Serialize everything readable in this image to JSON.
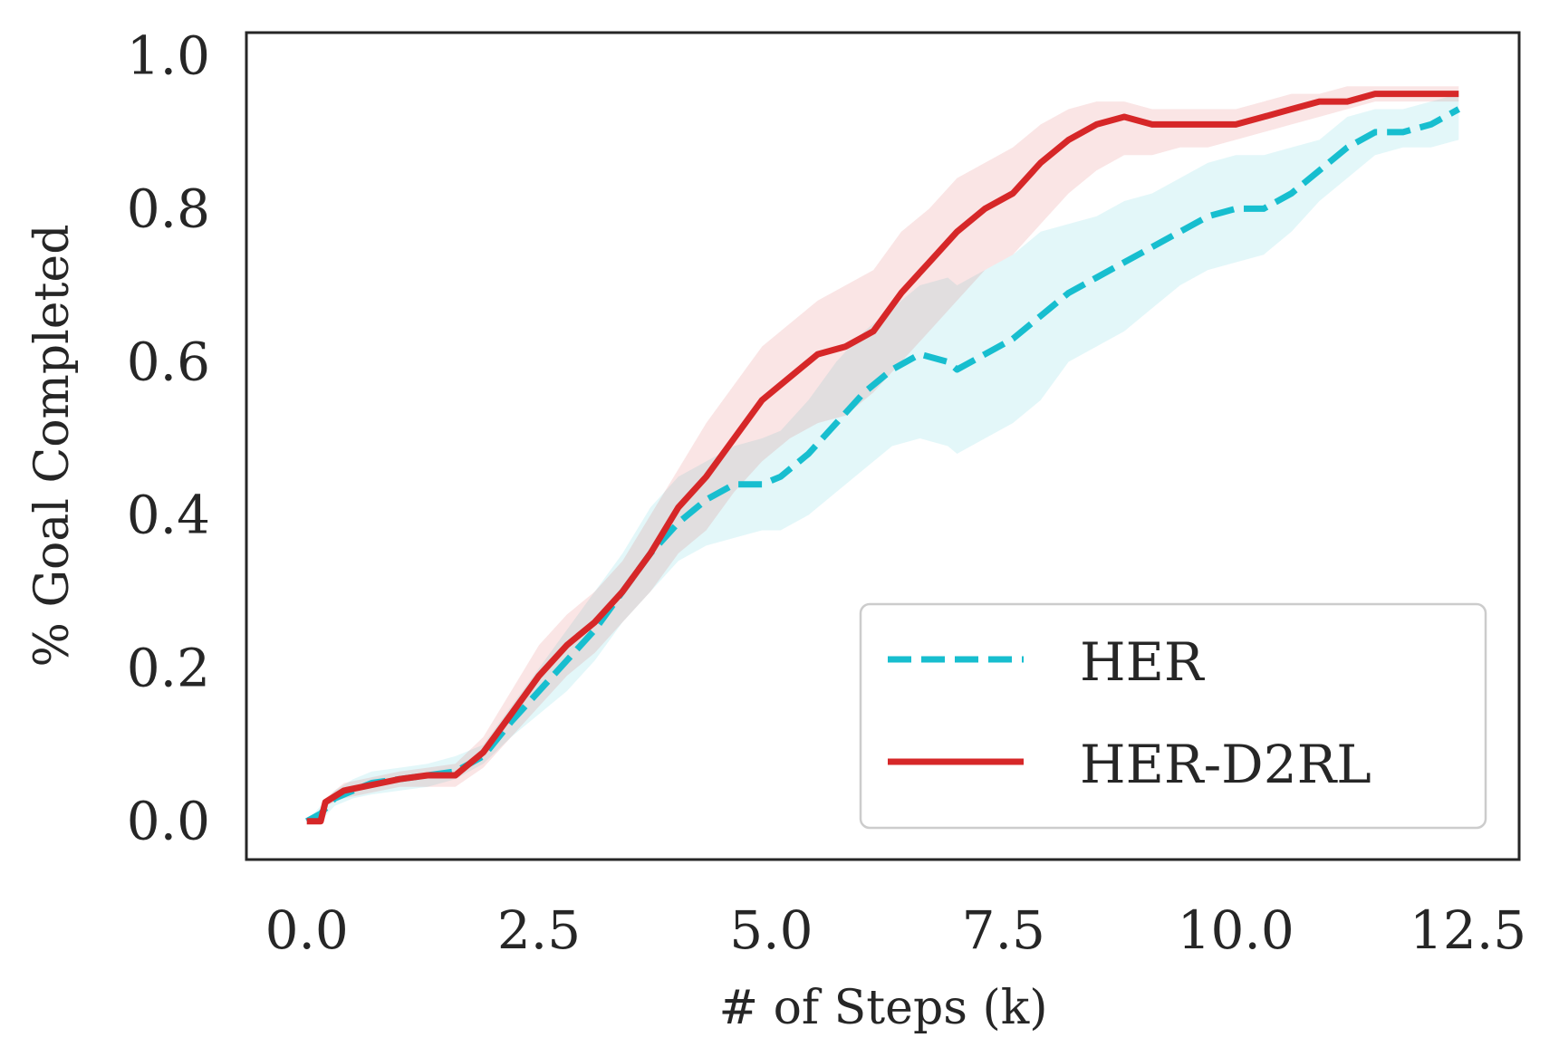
{
  "chart_data": {
    "type": "line",
    "title": "",
    "xlabel": "# of Steps (k)",
    "ylabel": "% Goal Completed",
    "xlim": [
      -0.65,
      13.05
    ],
    "ylim": [
      -0.05,
      1.03
    ],
    "xticks": [
      0.0,
      2.5,
      5.0,
      7.5,
      10.0,
      12.5
    ],
    "xtick_labels": [
      "0.0",
      "2.5",
      "5.0",
      "7.5",
      "10.0",
      "12.5"
    ],
    "yticks": [
      0.0,
      0.2,
      0.4,
      0.6,
      0.8,
      1.0
    ],
    "ytick_labels": [
      "0.0",
      "0.2",
      "0.4",
      "0.6",
      "0.8",
      "1.0"
    ],
    "grid": false,
    "legend_position": "lower-right",
    "series": [
      {
        "name": "HER",
        "color": "#17becf",
        "style": "dashed",
        "x": [
          0.0,
          0.15,
          0.3,
          0.5,
          0.7,
          1.0,
          1.3,
          1.6,
          1.9,
          2.2,
          2.5,
          2.8,
          3.1,
          3.4,
          3.7,
          4.0,
          4.3,
          4.6,
          4.9,
          5.1,
          5.4,
          5.7,
          6.0,
          6.3,
          6.6,
          6.9,
          7.0,
          7.3,
          7.6,
          7.9,
          8.2,
          8.5,
          8.8,
          9.1,
          9.4,
          9.7,
          10.0,
          10.3,
          10.6,
          10.9,
          11.2,
          11.5,
          11.8,
          12.1,
          12.4
        ],
        "y": [
          0.0,
          0.01,
          0.03,
          0.04,
          0.05,
          0.055,
          0.06,
          0.065,
          0.085,
          0.13,
          0.17,
          0.21,
          0.25,
          0.3,
          0.35,
          0.39,
          0.42,
          0.44,
          0.44,
          0.45,
          0.48,
          0.52,
          0.56,
          0.59,
          0.61,
          0.6,
          0.59,
          0.61,
          0.63,
          0.66,
          0.69,
          0.71,
          0.73,
          0.75,
          0.77,
          0.79,
          0.8,
          0.8,
          0.82,
          0.85,
          0.88,
          0.9,
          0.9,
          0.91,
          0.93
        ],
        "lower": [
          0.0,
          0.0,
          0.02,
          0.03,
          0.035,
          0.04,
          0.045,
          0.055,
          0.075,
          0.11,
          0.14,
          0.17,
          0.21,
          0.26,
          0.3,
          0.34,
          0.36,
          0.37,
          0.38,
          0.38,
          0.4,
          0.43,
          0.46,
          0.49,
          0.5,
          0.49,
          0.48,
          0.5,
          0.52,
          0.55,
          0.6,
          0.62,
          0.64,
          0.67,
          0.7,
          0.72,
          0.73,
          0.74,
          0.77,
          0.81,
          0.84,
          0.87,
          0.88,
          0.88,
          0.89
        ],
        "upper": [
          0.0,
          0.02,
          0.04,
          0.055,
          0.065,
          0.07,
          0.075,
          0.085,
          0.1,
          0.15,
          0.2,
          0.25,
          0.3,
          0.35,
          0.41,
          0.45,
          0.47,
          0.49,
          0.5,
          0.51,
          0.55,
          0.6,
          0.64,
          0.67,
          0.7,
          0.71,
          0.7,
          0.72,
          0.74,
          0.77,
          0.78,
          0.79,
          0.81,
          0.82,
          0.84,
          0.86,
          0.87,
          0.87,
          0.88,
          0.89,
          0.92,
          0.93,
          0.93,
          0.94,
          0.95
        ]
      },
      {
        "name": "HER-D2RL",
        "color": "#d62728",
        "style": "solid",
        "x": [
          0.0,
          0.15,
          0.2,
          0.4,
          0.6,
          0.8,
          1.0,
          1.3,
          1.6,
          1.9,
          2.2,
          2.5,
          2.8,
          3.1,
          3.4,
          3.7,
          4.0,
          4.3,
          4.6,
          4.9,
          5.2,
          5.5,
          5.8,
          6.1,
          6.4,
          6.7,
          7.0,
          7.3,
          7.6,
          7.9,
          8.2,
          8.5,
          8.8,
          9.1,
          9.4,
          9.7,
          10.0,
          10.3,
          10.6,
          10.9,
          11.2,
          11.5,
          11.8,
          12.1,
          12.4
        ],
        "y": [
          0.0,
          0.0,
          0.025,
          0.04,
          0.045,
          0.05,
          0.055,
          0.06,
          0.06,
          0.09,
          0.14,
          0.19,
          0.23,
          0.26,
          0.3,
          0.35,
          0.41,
          0.45,
          0.5,
          0.55,
          0.58,
          0.61,
          0.62,
          0.64,
          0.69,
          0.73,
          0.77,
          0.8,
          0.82,
          0.86,
          0.89,
          0.91,
          0.92,
          0.91,
          0.91,
          0.91,
          0.91,
          0.92,
          0.93,
          0.94,
          0.94,
          0.95,
          0.95,
          0.95,
          0.95
        ],
        "lower": [
          0.0,
          0.0,
          0.02,
          0.03,
          0.035,
          0.04,
          0.045,
          0.045,
          0.045,
          0.07,
          0.11,
          0.15,
          0.19,
          0.22,
          0.26,
          0.3,
          0.35,
          0.38,
          0.43,
          0.47,
          0.5,
          0.52,
          0.53,
          0.56,
          0.6,
          0.64,
          0.68,
          0.72,
          0.74,
          0.78,
          0.82,
          0.85,
          0.87,
          0.87,
          0.88,
          0.88,
          0.89,
          0.9,
          0.91,
          0.92,
          0.93,
          0.94,
          0.94,
          0.94,
          0.94
        ],
        "upper": [
          0.0,
          0.01,
          0.03,
          0.05,
          0.055,
          0.06,
          0.065,
          0.07,
          0.075,
          0.11,
          0.17,
          0.23,
          0.27,
          0.3,
          0.34,
          0.4,
          0.46,
          0.52,
          0.57,
          0.62,
          0.65,
          0.68,
          0.7,
          0.72,
          0.77,
          0.8,
          0.84,
          0.86,
          0.88,
          0.91,
          0.93,
          0.94,
          0.94,
          0.93,
          0.93,
          0.93,
          0.93,
          0.94,
          0.95,
          0.95,
          0.96,
          0.96,
          0.96,
          0.96,
          0.96
        ]
      }
    ]
  }
}
